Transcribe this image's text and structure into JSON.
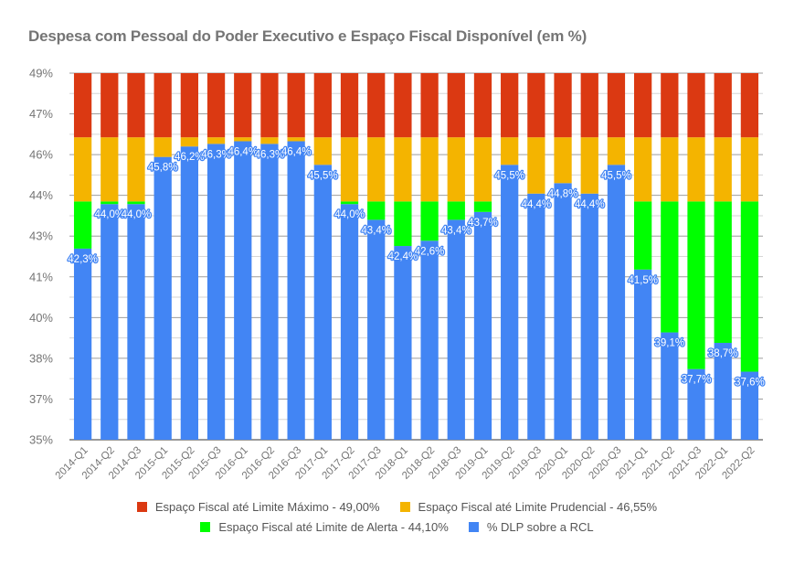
{
  "chart_data": {
    "type": "bar",
    "stacked": true,
    "title": "Despesa com Pessoal do Poder Executivo e Espaço Fiscal Disponível (em %)",
    "xlabel": "",
    "ylabel": "",
    "ylim": [
      35,
      49
    ],
    "y_ticks": [
      "35%",
      "37%",
      "38%",
      "40%",
      "41%",
      "43%",
      "44%",
      "46%",
      "47%",
      "49%"
    ],
    "grid": true,
    "legend_position": "bottom",
    "categories": [
      "2014-Q1",
      "2014-Q2",
      "2014-Q3",
      "2015-Q1",
      "2015-Q2",
      "2015-Q3",
      "2016-Q1",
      "2016-Q2",
      "2016-Q3",
      "2017-Q1",
      "2017-Q2",
      "2017-Q3",
      "2018-Q1",
      "2018-Q2",
      "2018-Q3",
      "2019-Q1",
      "2019-Q2",
      "2019-Q3",
      "2020-Q1",
      "2020-Q2",
      "2020-Q3",
      "2021-Q1",
      "2021-Q2",
      "2021-Q3",
      "2022-Q1",
      "2022-Q2"
    ],
    "dlp_values": [
      42.3,
      44.0,
      44.0,
      45.8,
      46.2,
      46.3,
      46.4,
      46.3,
      46.4,
      45.5,
      44.0,
      43.4,
      42.4,
      42.6,
      43.4,
      43.7,
      45.5,
      44.4,
      44.8,
      44.4,
      45.5,
      41.5,
      39.1,
      37.7,
      38.7,
      37.6
    ],
    "data_labels": [
      "42,3%",
      "44,0%",
      "44,0%",
      "45,8%",
      "46,2%",
      "46,3%",
      "46,4%",
      "46,3%",
      "46,4%",
      "45,5%",
      "44,0%",
      "43,4%",
      "42,4%",
      "42,6%",
      "43,4%",
      "43,7%",
      "45,5%",
      "44,4%",
      "44,8%",
      "44,4%",
      "45,5%",
      "41,5%",
      "39,1%",
      "37,7%",
      "38,7%",
      "37,6%"
    ],
    "limits": {
      "alerta": 44.1,
      "prudencial": 46.55,
      "maximo": 49.0
    },
    "series": [
      {
        "name": "% DLP sobre a RCL",
        "color": "#4285f4",
        "key": "dlp"
      },
      {
        "name": "Espaço Fiscal até Limite de Alerta - 44,10%",
        "color": "#00ff00",
        "key": "alerta"
      },
      {
        "name": "Espaço Fiscal até Limite Prudencial - 46,55%",
        "color": "#f4b400",
        "key": "prudencial"
      },
      {
        "name": "Espaço Fiscal até Limite Máximo - 49,00%",
        "color": "#db3912",
        "key": "maximo"
      }
    ],
    "legend_rows": [
      [
        {
          "label": "Espaço Fiscal até Limite Máximo - 49,00%",
          "color": "#db3912"
        },
        {
          "label": "Espaço Fiscal até Limite Prudencial - 46,55%",
          "color": "#f4b400"
        }
      ],
      [
        {
          "label": "Espaço Fiscal até Limite de Alerta - 44,10%",
          "color": "#00ff00"
        },
        {
          "label": "% DLP sobre a RCL",
          "color": "#4285f4"
        }
      ]
    ]
  }
}
